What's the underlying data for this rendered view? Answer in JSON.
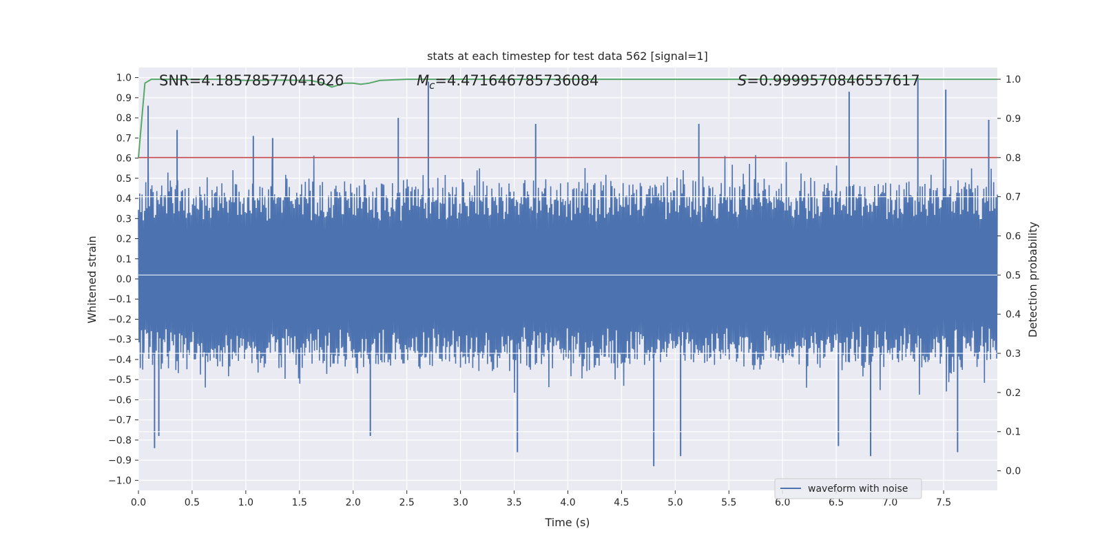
{
  "chart_data": {
    "type": "line",
    "title": "stats at each timestep for test data 562 [signal=1]",
    "xlabel": "Time (s)",
    "ylabel": "Whitened strain",
    "y2label": "Detection probability",
    "xlim": [
      0,
      8.0
    ],
    "ylim": [
      -1.05,
      1.05
    ],
    "y2lim": [
      -0.05,
      1.03
    ],
    "xticks": [
      "0.0",
      "0.5",
      "1.0",
      "1.5",
      "2.0",
      "2.5",
      "3.0",
      "3.5",
      "4.0",
      "4.5",
      "5.0",
      "5.5",
      "6.0",
      "6.5",
      "7.0",
      "7.5"
    ],
    "xtick_values": [
      0,
      0.5,
      1,
      1.5,
      2,
      2.5,
      3,
      3.5,
      4,
      4.5,
      5,
      5.5,
      6,
      6.5,
      7,
      7.5
    ],
    "yticks": [
      "1.0",
      "0.9",
      "0.8",
      "0.7",
      "0.6",
      "0.5",
      "0.4",
      "0.3",
      "0.2",
      "0.1",
      "0.0",
      "−0.1",
      "−0.2",
      "−0.3",
      "−0.4",
      "−0.5",
      "−0.6",
      "−0.7",
      "−0.8",
      "−0.9",
      "−1.0"
    ],
    "ytick_values": [
      1,
      0.9,
      0.8,
      0.7,
      0.6,
      0.5,
      0.4,
      0.3,
      0.2,
      0.1,
      0,
      -0.1,
      -0.2,
      -0.3,
      -0.4,
      -0.5,
      -0.6,
      -0.7,
      -0.8,
      -0.9,
      -1
    ],
    "y2ticks": [
      "1.0",
      "0.9",
      "0.8",
      "0.7",
      "0.6",
      "0.5",
      "0.4",
      "0.3",
      "0.2",
      "0.1",
      "0.0"
    ],
    "y2tick_values": [
      1,
      0.9,
      0.8,
      0.7,
      0.6,
      0.5,
      0.4,
      0.3,
      0.2,
      0.1,
      0
    ],
    "annotations": {
      "snr": "SNR=4.18578577041626",
      "mc_symbol": "M",
      "mc_sub": "c",
      "mc_value": "=4.471646785736084",
      "s_symbol": "S",
      "s_value": "=0.9999570846557617"
    },
    "threshold": {
      "value": 0.8,
      "axis": "right",
      "color": "#c44e52"
    },
    "waveform": {
      "name": "waveform with noise",
      "color": "#4c72b0",
      "envelope_note": "dense noise; typical upper envelope ~0.4-0.6, lower ~-0.3 to -0.55",
      "peaks": [
        {
          "t": 0.09,
          "v": 0.86
        },
        {
          "t": 0.36,
          "v": 0.74
        },
        {
          "t": 1.07,
          "v": 0.71
        },
        {
          "t": 1.25,
          "v": 0.7
        },
        {
          "t": 2.42,
          "v": 0.8
        },
        {
          "t": 2.7,
          "v": 0.98
        },
        {
          "t": 3.7,
          "v": 0.77
        },
        {
          "t": 5.22,
          "v": 0.77
        },
        {
          "t": 6.62,
          "v": 0.93
        },
        {
          "t": 7.26,
          "v": 1.0
        },
        {
          "t": 7.52,
          "v": 0.94
        },
        {
          "t": 7.92,
          "v": 0.79
        }
      ],
      "troughs": [
        {
          "t": 0.15,
          "v": -0.84
        },
        {
          "t": 0.19,
          "v": -0.78
        },
        {
          "t": 2.16,
          "v": -0.78
        },
        {
          "t": 3.53,
          "v": -0.86
        },
        {
          "t": 4.8,
          "v": -0.93
        },
        {
          "t": 5.05,
          "v": -0.88
        },
        {
          "t": 6.52,
          "v": -0.83
        },
        {
          "t": 6.82,
          "v": -0.88
        },
        {
          "t": 7.63,
          "v": -0.86
        }
      ]
    },
    "probability": {
      "name": "detection probability",
      "color": "#55a868",
      "x": [
        0.0,
        0.06,
        0.12,
        0.3,
        0.8,
        1.0,
        1.3,
        1.6,
        1.72,
        1.8,
        1.92,
        2.0,
        2.07,
        2.15,
        2.25,
        2.5,
        3.5,
        4.0,
        8.0
      ],
      "y": [
        0.8,
        0.99,
        1.0,
        1.0,
        1.0,
        0.997,
        0.998,
        0.997,
        0.99,
        0.98,
        0.99,
        0.99,
        0.987,
        0.99,
        0.997,
        1.0,
        1.0,
        1.0,
        1.0
      ]
    },
    "legend": {
      "label": "waveform with noise",
      "location": "lower-right"
    },
    "grid": true,
    "style": {
      "axes_bg": "#eaeaf2",
      "grid_color": "#ffffff"
    }
  }
}
